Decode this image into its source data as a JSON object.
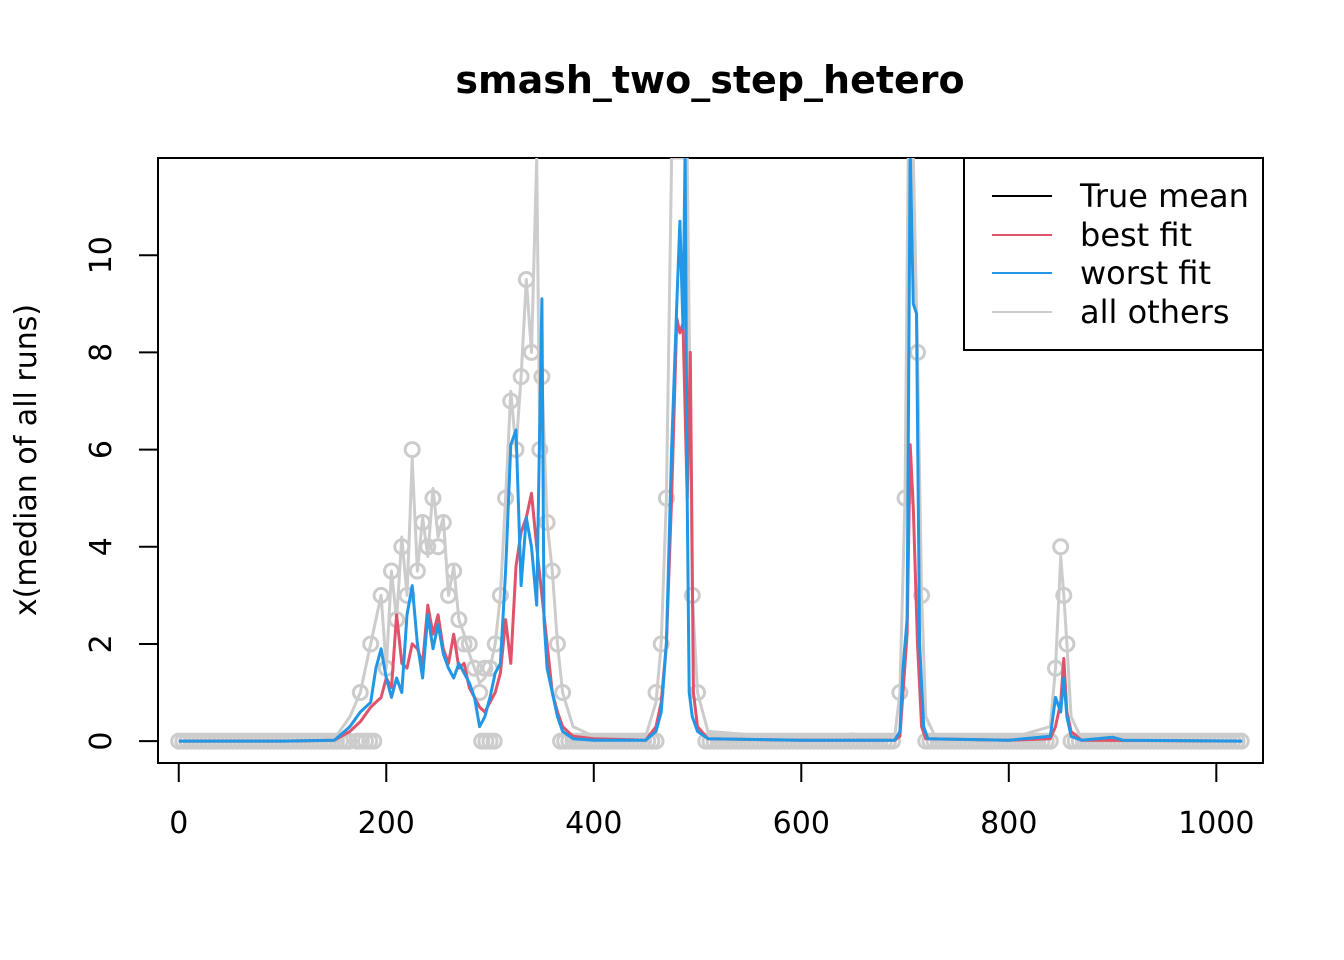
{
  "chart_data": {
    "type": "line",
    "title": "smash_two_step_hetero",
    "xlabel": "",
    "ylabel": "x(median of all runs)",
    "xlim": [
      -20,
      1045
    ],
    "ylim": [
      -0.45,
      12
    ],
    "xticks": [
      0,
      200,
      400,
      600,
      800,
      1000
    ],
    "yticks": [
      0,
      2,
      4,
      6,
      8,
      10
    ],
    "grid": false,
    "legend_position": "top-right",
    "colors": {
      "true_mean": "#000000",
      "best_fit": "#DF536B",
      "worst_fit": "#2297E6",
      "all_others": "#CCCCCC"
    },
    "series": [
      {
        "name": "True mean",
        "points": []
      },
      {
        "name": "best fit",
        "points": [
          [
            0,
            0
          ],
          [
            100,
            0
          ],
          [
            150,
            0.02
          ],
          [
            165,
            0.2
          ],
          [
            175,
            0.4
          ],
          [
            185,
            0.7
          ],
          [
            195,
            0.9
          ],
          [
            200,
            1.3
          ],
          [
            205,
            1.1
          ],
          [
            210,
            2.6
          ],
          [
            215,
            1.6
          ],
          [
            220,
            1.5
          ],
          [
            225,
            2.0
          ],
          [
            230,
            1.9
          ],
          [
            235,
            1.6
          ],
          [
            240,
            2.8
          ],
          [
            245,
            2.2
          ],
          [
            250,
            2.6
          ],
          [
            255,
            1.9
          ],
          [
            260,
            1.6
          ],
          [
            265,
            2.2
          ],
          [
            270,
            1.5
          ],
          [
            275,
            1.6
          ],
          [
            280,
            1.1
          ],
          [
            285,
            0.9
          ],
          [
            290,
            0.7
          ],
          [
            295,
            0.6
          ],
          [
            300,
            0.8
          ],
          [
            305,
            1.0
          ],
          [
            310,
            1.4
          ],
          [
            315,
            2.5
          ],
          [
            320,
            1.6
          ],
          [
            325,
            3.6
          ],
          [
            330,
            4.3
          ],
          [
            335,
            4.6
          ],
          [
            340,
            5.1
          ],
          [
            345,
            4.0
          ],
          [
            350,
            3.0
          ],
          [
            355,
            2.0
          ],
          [
            360,
            1.0
          ],
          [
            365,
            0.6
          ],
          [
            370,
            0.3
          ],
          [
            380,
            0.1
          ],
          [
            400,
            0.05
          ],
          [
            450,
            0.02
          ],
          [
            460,
            0.3
          ],
          [
            465,
            0.8
          ],
          [
            470,
            2.0
          ],
          [
            475,
            5.0
          ],
          [
            480,
            8.7
          ],
          [
            483,
            8.4
          ],
          [
            486,
            8.6
          ],
          [
            490,
            5.0
          ],
          [
            493,
            8.0
          ],
          [
            496,
            1.0
          ],
          [
            500,
            0.3
          ],
          [
            510,
            0.05
          ],
          [
            600,
            0.02
          ],
          [
            690,
            0.02
          ],
          [
            695,
            0.1
          ],
          [
            698,
            1.0
          ],
          [
            702,
            2.2
          ],
          [
            705,
            6.1
          ],
          [
            708,
            4.8
          ],
          [
            712,
            2.0
          ],
          [
            716,
            0.3
          ],
          [
            720,
            0.05
          ],
          [
            800,
            0.02
          ],
          [
            840,
            0.05
          ],
          [
            845,
            0.3
          ],
          [
            850,
            0.8
          ],
          [
            853,
            1.7
          ],
          [
            856,
            0.6
          ],
          [
            860,
            0.2
          ],
          [
            870,
            0.02
          ],
          [
            1025,
            0
          ]
        ]
      },
      {
        "name": "worst fit",
        "points": [
          [
            0,
            0
          ],
          [
            100,
            0
          ],
          [
            150,
            0.02
          ],
          [
            165,
            0.3
          ],
          [
            175,
            0.6
          ],
          [
            185,
            0.8
          ],
          [
            190,
            1.5
          ],
          [
            195,
            1.9
          ],
          [
            200,
            1.3
          ],
          [
            205,
            0.9
          ],
          [
            210,
            1.3
          ],
          [
            215,
            1.0
          ],
          [
            220,
            2.6
          ],
          [
            225,
            3.2
          ],
          [
            230,
            2.0
          ],
          [
            235,
            1.3
          ],
          [
            240,
            2.6
          ],
          [
            245,
            1.9
          ],
          [
            250,
            2.4
          ],
          [
            255,
            1.8
          ],
          [
            260,
            1.5
          ],
          [
            265,
            1.3
          ],
          [
            270,
            1.6
          ],
          [
            275,
            1.4
          ],
          [
            280,
            1.2
          ],
          [
            285,
            0.9
          ],
          [
            290,
            0.3
          ],
          [
            295,
            0.5
          ],
          [
            300,
            0.9
          ],
          [
            305,
            1.4
          ],
          [
            310,
            1.6
          ],
          [
            315,
            3.5
          ],
          [
            320,
            6.1
          ],
          [
            325,
            6.4
          ],
          [
            330,
            3.2
          ],
          [
            335,
            4.6
          ],
          [
            340,
            4.0
          ],
          [
            345,
            2.8
          ],
          [
            350,
            9.1
          ],
          [
            352,
            2.5
          ],
          [
            355,
            1.5
          ],
          [
            360,
            1.0
          ],
          [
            365,
            0.5
          ],
          [
            370,
            0.2
          ],
          [
            380,
            0.05
          ],
          [
            400,
            0.02
          ],
          [
            450,
            0.02
          ],
          [
            460,
            0.2
          ],
          [
            465,
            0.6
          ],
          [
            470,
            2.0
          ],
          [
            475,
            6.0
          ],
          [
            480,
            9.0
          ],
          [
            483,
            10.7
          ],
          [
            486,
            8.5
          ],
          [
            488,
            12.2
          ],
          [
            490,
            5.0
          ],
          [
            492,
            1.0
          ],
          [
            495,
            0.5
          ],
          [
            500,
            0.2
          ],
          [
            510,
            0.05
          ],
          [
            600,
            0.02
          ],
          [
            690,
            0.02
          ],
          [
            695,
            0.2
          ],
          [
            698,
            1.5
          ],
          [
            702,
            2.5
          ],
          [
            705,
            12.2
          ],
          [
            708,
            9.0
          ],
          [
            711,
            8.8
          ],
          [
            714,
            2.0
          ],
          [
            718,
            0.3
          ],
          [
            722,
            0.05
          ],
          [
            800,
            0.02
          ],
          [
            840,
            0.1
          ],
          [
            845,
            0.9
          ],
          [
            850,
            0.6
          ],
          [
            853,
            1.3
          ],
          [
            856,
            0.5
          ],
          [
            860,
            0.1
          ],
          [
            870,
            0.02
          ],
          [
            900,
            0.08
          ],
          [
            910,
            0.02
          ],
          [
            1025,
            0
          ]
        ]
      },
      {
        "name": "all others",
        "points": [
          [
            0,
            0
          ],
          [
            100,
            0
          ],
          [
            150,
            0.05
          ],
          [
            165,
            0.5
          ],
          [
            175,
            1.0
          ],
          [
            185,
            2.0
          ],
          [
            195,
            3.0
          ],
          [
            200,
            1.5
          ],
          [
            205,
            3.5
          ],
          [
            210,
            2.5
          ],
          [
            215,
            4.2
          ],
          [
            220,
            3.0
          ],
          [
            225,
            5.8
          ],
          [
            230,
            3.5
          ],
          [
            235,
            4.6
          ],
          [
            240,
            3.8
          ],
          [
            245,
            5.2
          ],
          [
            250,
            4.2
          ],
          [
            255,
            4.6
          ],
          [
            260,
            3.0
          ],
          [
            265,
            3.6
          ],
          [
            270,
            2.5
          ],
          [
            275,
            2.2
          ],
          [
            280,
            1.8
          ],
          [
            285,
            1.5
          ],
          [
            290,
            1.2
          ],
          [
            295,
            1.3
          ],
          [
            300,
            1.5
          ],
          [
            305,
            2.0
          ],
          [
            310,
            3.0
          ],
          [
            315,
            5.0
          ],
          [
            320,
            7.2
          ],
          [
            325,
            6.0
          ],
          [
            330,
            7.5
          ],
          [
            335,
            9.5
          ],
          [
            340,
            8.0
          ],
          [
            345,
            12.0
          ],
          [
            348,
            6.0
          ],
          [
            350,
            7.5
          ],
          [
            355,
            4.5
          ],
          [
            360,
            3.5
          ],
          [
            365,
            2.0
          ],
          [
            370,
            1.0
          ],
          [
            380,
            0.3
          ],
          [
            400,
            0.1
          ],
          [
            450,
            0.1
          ],
          [
            460,
            0.8
          ],
          [
            465,
            2.0
          ],
          [
            470,
            5.0
          ],
          [
            475,
            12.0
          ],
          [
            480,
            12.0
          ],
          [
            485,
            12.0
          ],
          [
            490,
            12.0
          ],
          [
            495,
            3.0
          ],
          [
            500,
            1.0
          ],
          [
            510,
            0.2
          ],
          [
            600,
            0.05
          ],
          [
            650,
            0.15
          ],
          [
            655,
            0.05
          ],
          [
            690,
            0.1
          ],
          [
            695,
            1.0
          ],
          [
            700,
            5.0
          ],
          [
            703,
            12.0
          ],
          [
            708,
            12.0
          ],
          [
            712,
            8.0
          ],
          [
            716,
            3.0
          ],
          [
            720,
            0.5
          ],
          [
            730,
            0.05
          ],
          [
            800,
            0.05
          ],
          [
            840,
            0.3
          ],
          [
            845,
            1.5
          ],
          [
            850,
            3.8
          ],
          [
            853,
            3.0
          ],
          [
            856,
            2.0
          ],
          [
            860,
            0.5
          ],
          [
            870,
            0.05
          ],
          [
            1025,
            0
          ]
        ]
      }
    ],
    "legend": [
      {
        "key": "true_mean",
        "label": "True mean"
      },
      {
        "key": "best_fit",
        "label": "best fit"
      },
      {
        "key": "worst_fit",
        "label": "worst fit"
      },
      {
        "key": "all_others",
        "label": "all others"
      }
    ]
  }
}
